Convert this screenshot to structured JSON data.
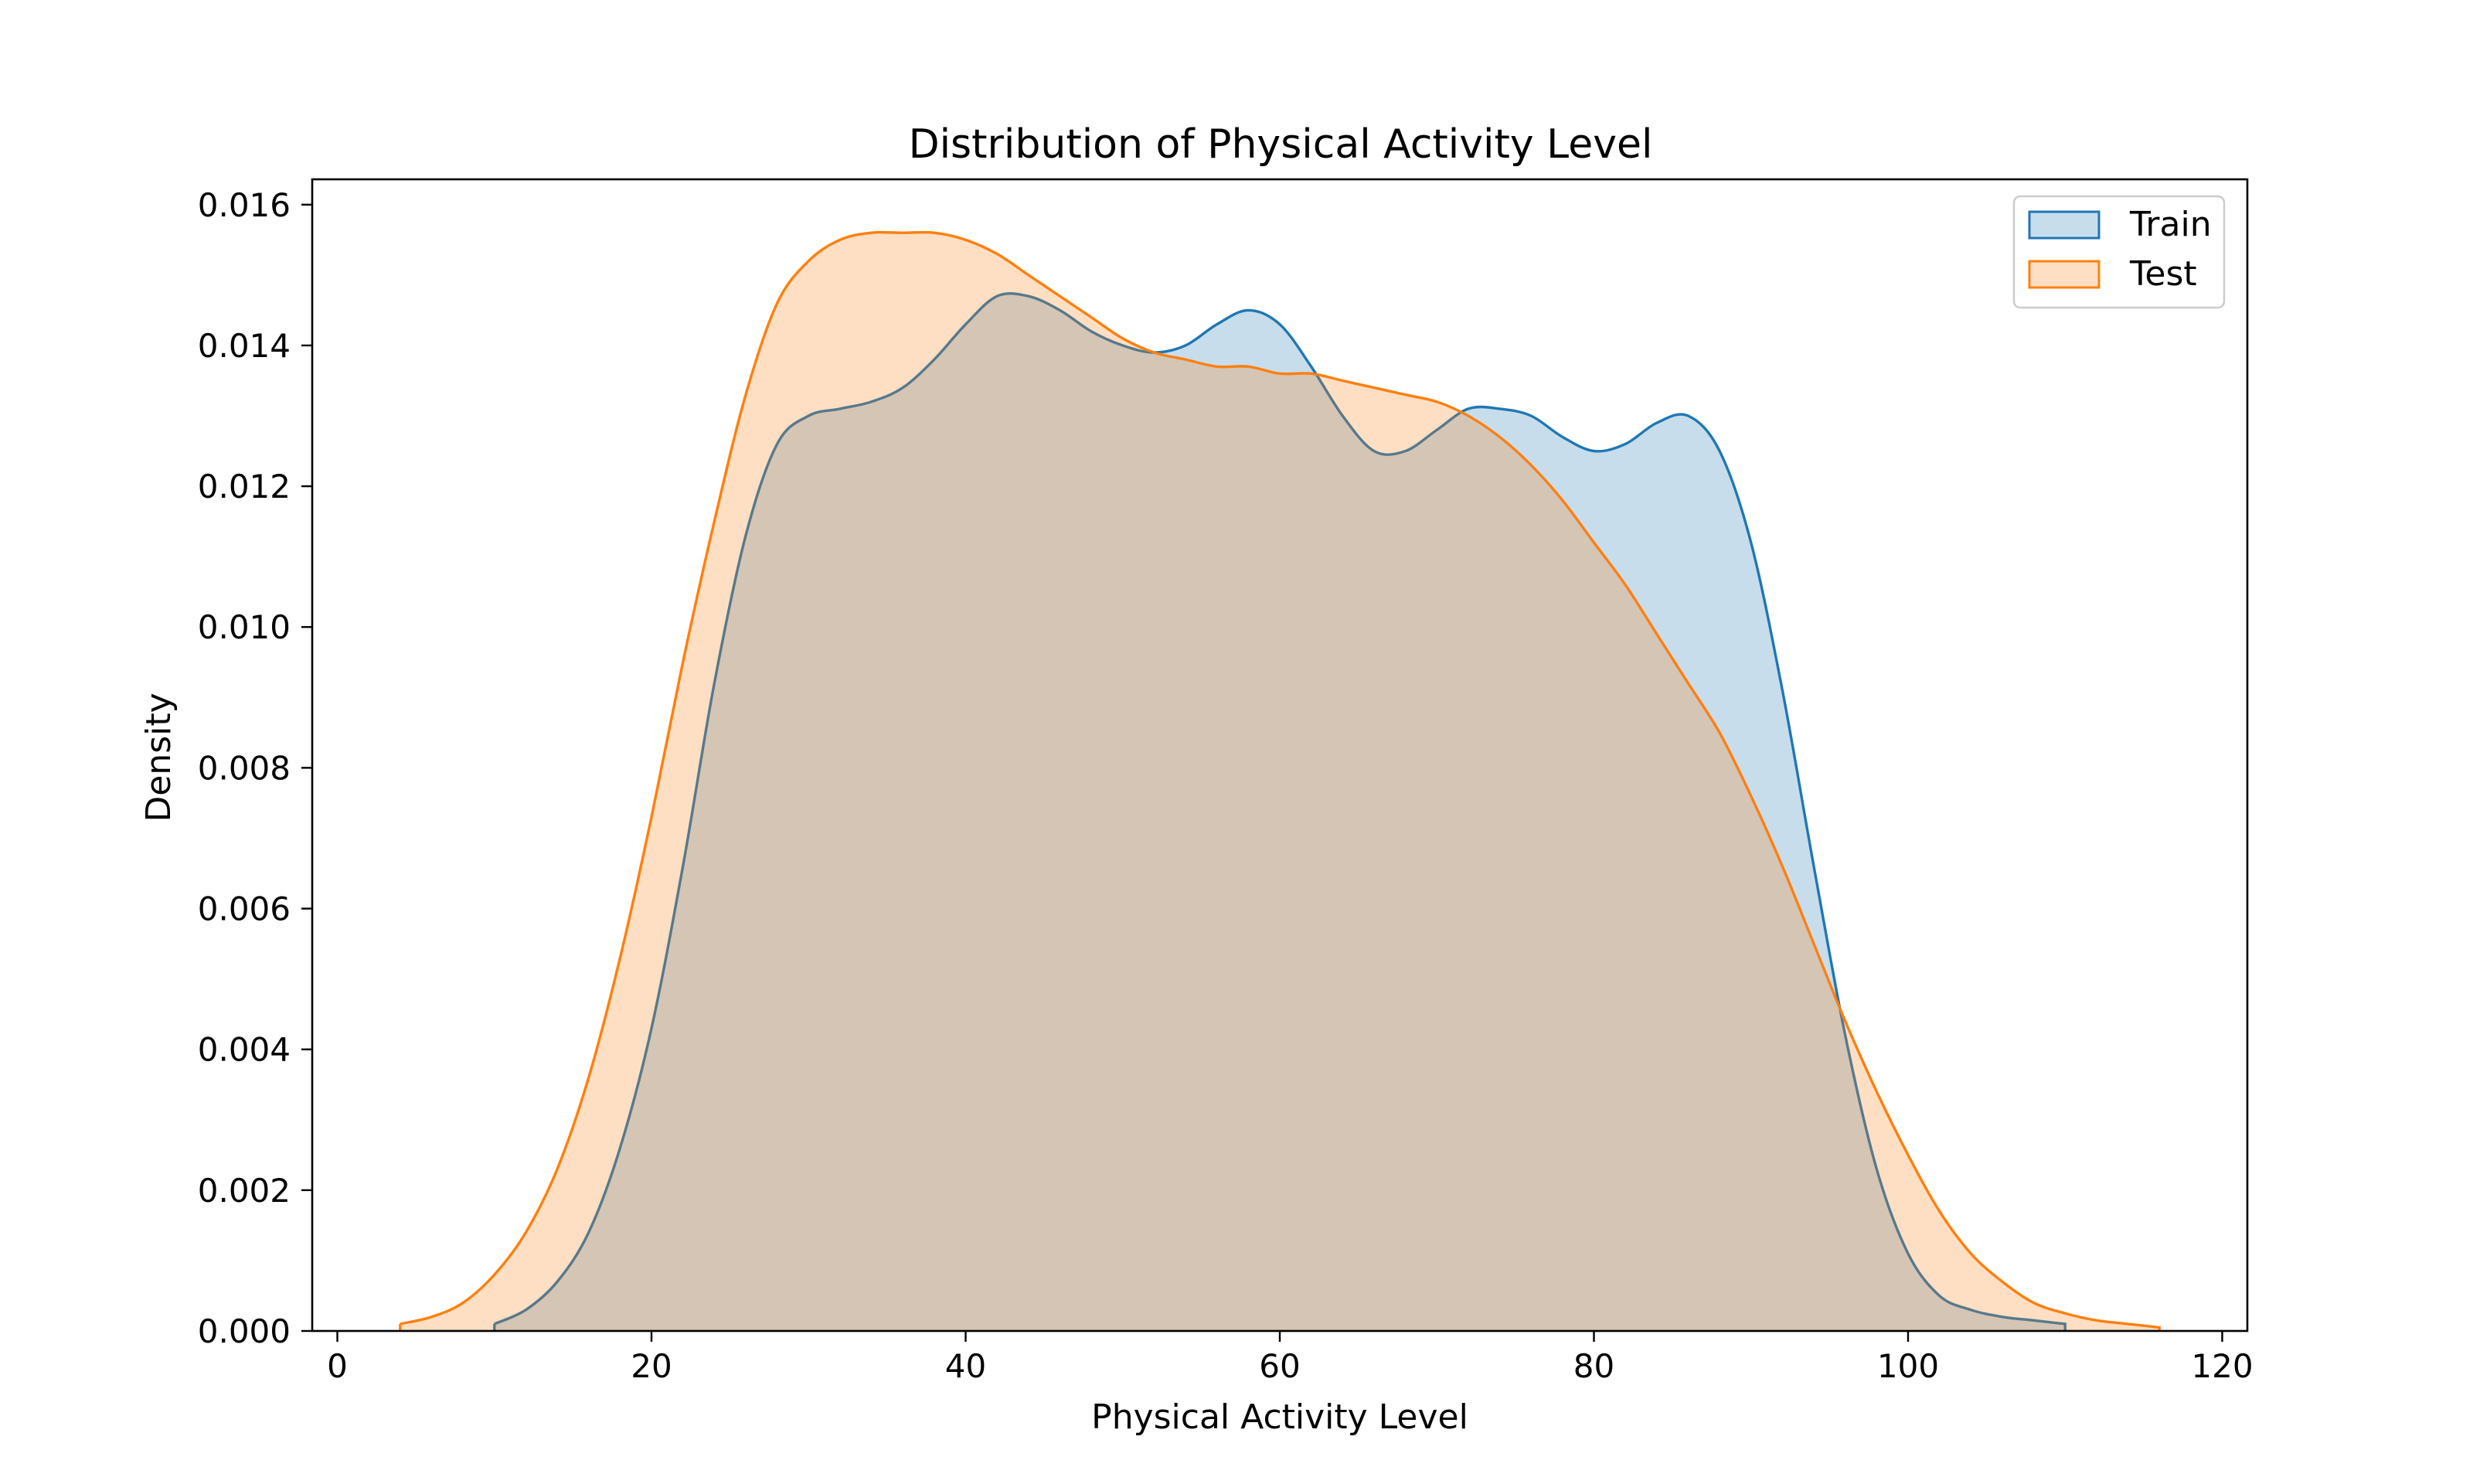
{
  "chart_data": {
    "type": "area",
    "title": "Distribution of Physical Activity Level",
    "xlabel": "Physical Activity Level",
    "ylabel": "Density",
    "xlim": [
      -1.6,
      121.6
    ],
    "ylim": [
      0,
      0.01636
    ],
    "xticks": [
      0,
      20,
      40,
      60,
      80,
      100,
      120
    ],
    "xtick_labels": [
      "0",
      "20",
      "40",
      "60",
      "80",
      "100",
      "120"
    ],
    "yticks": [
      0,
      0.002,
      0.004,
      0.006,
      0.008,
      0.01,
      0.012,
      0.014,
      0.016
    ],
    "ytick_labels": [
      "0.000",
      "0.002",
      "0.004",
      "0.006",
      "0.008",
      "0.010",
      "0.012",
      "0.014",
      "0.016"
    ],
    "grid": false,
    "legend_position": "top-right",
    "series": [
      {
        "name": "Train",
        "line_color": "#1f77b4",
        "fill_color": "#1f77b4",
        "x": [
          10,
          12,
          14,
          16,
          18,
          20,
          22,
          24,
          26,
          28,
          30,
          32,
          34,
          36,
          38,
          40,
          42,
          44,
          46,
          48,
          50,
          52,
          54,
          56,
          58,
          60,
          62,
          64,
          66,
          68,
          70,
          72,
          74,
          76,
          78,
          80,
          82,
          84,
          86,
          88,
          90,
          92,
          94,
          96,
          98,
          100,
          102,
          104,
          106,
          108,
          110
        ],
        "y": [
          0.0001,
          0.0003,
          0.0007,
          0.0014,
          0.0026,
          0.0043,
          0.0066,
          0.0092,
          0.0113,
          0.0126,
          0.013,
          0.0131,
          0.0132,
          0.0134,
          0.0138,
          0.0143,
          0.0147,
          0.0147,
          0.0145,
          0.0142,
          0.014,
          0.0139,
          0.014,
          0.0143,
          0.0145,
          0.0143,
          0.0137,
          0.013,
          0.0125,
          0.0125,
          0.0128,
          0.0131,
          0.0131,
          0.013,
          0.0127,
          0.0125,
          0.0126,
          0.0129,
          0.013,
          0.0125,
          0.0112,
          0.0091,
          0.0066,
          0.0042,
          0.0023,
          0.0011,
          0.0005,
          0.0003,
          0.0002,
          0.00015,
          0.0001
        ]
      },
      {
        "name": "Test",
        "line_color": "#ff7f0e",
        "fill_color": "#ff7f0e",
        "x": [
          4,
          6,
          8,
          10,
          12,
          14,
          16,
          18,
          20,
          22,
          24,
          26,
          28,
          30,
          32,
          34,
          36,
          38,
          40,
          42,
          44,
          46,
          48,
          50,
          52,
          54,
          56,
          58,
          60,
          62,
          64,
          66,
          68,
          70,
          72,
          74,
          76,
          78,
          80,
          82,
          84,
          86,
          88,
          90,
          92,
          94,
          96,
          98,
          100,
          102,
          104,
          106,
          108,
          110,
          112,
          114,
          116
        ],
        "y": [
          0.0001,
          0.0002,
          0.0004,
          0.0008,
          0.0014,
          0.0023,
          0.0036,
          0.0053,
          0.0073,
          0.0095,
          0.0115,
          0.0133,
          0.0146,
          0.0152,
          0.0155,
          0.0156,
          0.0156,
          0.0156,
          0.0155,
          0.0153,
          0.015,
          0.0147,
          0.0144,
          0.0141,
          0.0139,
          0.0138,
          0.0137,
          0.0137,
          0.0136,
          0.0136,
          0.0135,
          0.0134,
          0.0133,
          0.0132,
          0.013,
          0.0127,
          0.0123,
          0.0118,
          0.0112,
          0.0106,
          0.0099,
          0.0092,
          0.0085,
          0.0076,
          0.0066,
          0.0055,
          0.0044,
          0.0034,
          0.0025,
          0.0017,
          0.0011,
          0.0007,
          0.0004,
          0.00025,
          0.00015,
          0.0001,
          5e-05
        ]
      }
    ]
  }
}
